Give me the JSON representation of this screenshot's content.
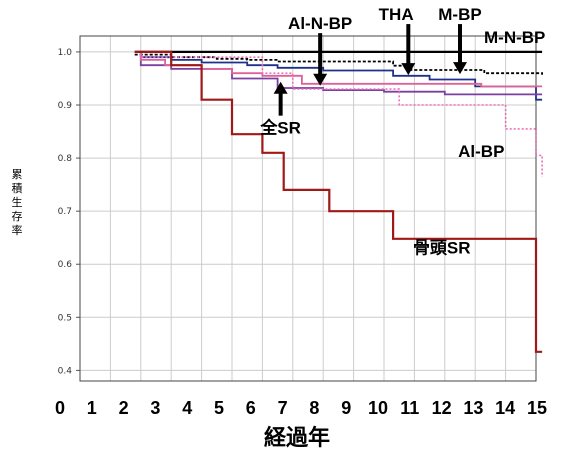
{
  "chart_data": {
    "type": "line",
    "xlabel": "経過年",
    "ylabel": "累積生存率",
    "xlim": [
      0,
      15
    ],
    "ylim": [
      0.38,
      1.03
    ],
    "x_ticks": [
      "0",
      "1",
      "2",
      "3",
      "4",
      "5",
      "6",
      "7",
      "8",
      "9",
      "10",
      "11",
      "12",
      "13",
      "14",
      "15"
    ],
    "y_ticks": [
      "0.4",
      "0.5",
      "0.6",
      "0.7",
      "0.8",
      "0.9",
      "1.0"
    ],
    "grid": true,
    "step": true,
    "series": [
      {
        "name": "M-N-BP",
        "color": "#000000",
        "dash": "",
        "width": 2.2,
        "x": [
          1.8,
          15.2
        ],
        "y": [
          1.0,
          1.0
        ]
      },
      {
        "name": "THA",
        "color": "#000000",
        "dash": "3,2",
        "width": 1.8,
        "x": [
          1.8,
          3.0,
          4.5,
          5.5,
          6.5,
          10.3,
          10.9,
          13.3,
          15.2
        ],
        "y": [
          0.995,
          0.99,
          0.987,
          0.985,
          0.982,
          0.974,
          0.966,
          0.96,
          0.957
        ]
      },
      {
        "name": "M-BP",
        "color": "#1f2f8c",
        "dash": "",
        "width": 1.8,
        "x": [
          1.8,
          2.0,
          3.0,
          4.0,
          5.5,
          6.5,
          8.0,
          10.3,
          11.5,
          13.0,
          15.0,
          15.2
        ],
        "y": [
          1.0,
          0.99,
          0.985,
          0.98,
          0.975,
          0.97,
          0.965,
          0.955,
          0.948,
          0.935,
          0.91,
          0.91
        ]
      },
      {
        "name": "Al-N-BP",
        "color": "#7a3fa0",
        "dash": "",
        "width": 1.8,
        "x": [
          1.8,
          2.0,
          3.0,
          5.0,
          6.5,
          8.0,
          10.0,
          12.0,
          15.2
        ],
        "y": [
          1.0,
          0.975,
          0.968,
          0.95,
          0.932,
          0.928,
          0.925,
          0.92,
          0.92
        ]
      },
      {
        "name": "全SR",
        "color": "#e0609a",
        "dash": "",
        "width": 1.8,
        "x": [
          1.8,
          2.0,
          2.8,
          4.0,
          5.0,
          6.0,
          7.3,
          9.0,
          13.2,
          15.2
        ],
        "y": [
          1.0,
          0.985,
          0.975,
          0.968,
          0.96,
          0.955,
          0.94,
          0.94,
          0.935,
          0.935
        ]
      },
      {
        "name": "Al-BP",
        "color": "#f070b8",
        "dash": "2,2",
        "width": 1.6,
        "x": [
          1.8,
          2.0,
          6.0,
          7.0,
          10.5,
          14.0,
          15.0,
          15.2
        ],
        "y": [
          1.0,
          0.99,
          0.96,
          0.93,
          0.9,
          0.855,
          0.805,
          0.765
        ]
      },
      {
        "name": "骨頭SR",
        "color": "#a01818",
        "dash": "",
        "width": 2.2,
        "x": [
          1.8,
          3.0,
          4.0,
          5.0,
          6.0,
          6.7,
          8.2,
          10.3,
          15.0,
          15.2
        ],
        "y": [
          1.0,
          0.975,
          0.91,
          0.845,
          0.81,
          0.74,
          0.7,
          0.648,
          0.435,
          0.435
        ]
      }
    ],
    "annotations": [
      {
        "text": "Al-N-BP",
        "x": 7.9,
        "y": 1.043,
        "arrow_to": [
          7.9,
          0.94
        ]
      },
      {
        "text": "THA",
        "x": 10.4,
        "y": 1.06,
        "arrow_to": [
          10.8,
          0.96
        ]
      },
      {
        "text": "M-BP",
        "x": 12.5,
        "y": 1.06,
        "arrow_to": [
          12.5,
          0.962
        ]
      },
      {
        "text": "M-N-BP",
        "x": 14.3,
        "y": 1.017
      },
      {
        "text": "全SR",
        "x": 6.6,
        "y": 0.846,
        "arrow_to": [
          6.6,
          0.94
        ],
        "arrow_dir": "up"
      },
      {
        "text": "Al-BP",
        "x": 13.2,
        "y": 0.802
      },
      {
        "text": "骨頭SR",
        "x": 11.9,
        "y": 0.62
      }
    ]
  }
}
